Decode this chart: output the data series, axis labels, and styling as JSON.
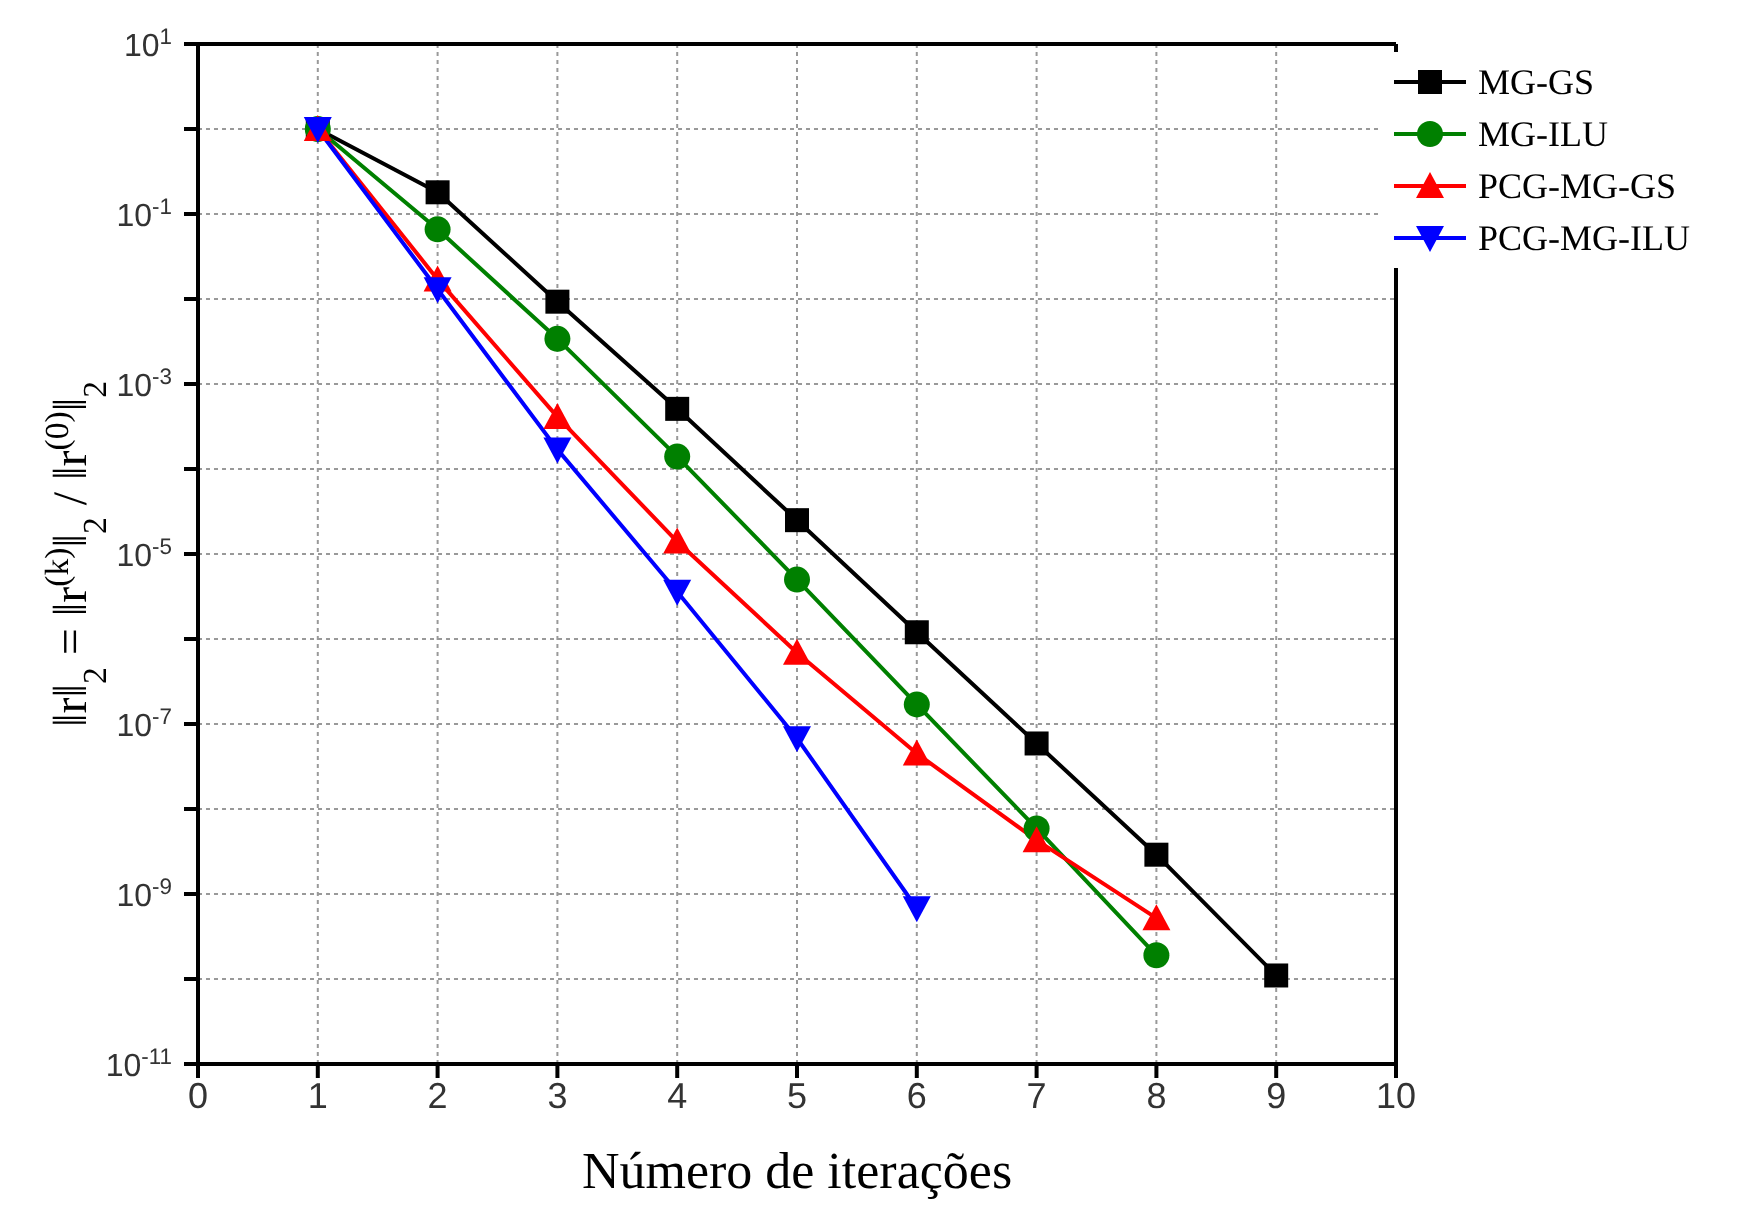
{
  "chart_data": {
    "type": "line",
    "xlabel": "Número de iterações",
    "ylabel": "‖r‖$_{2}$ = ‖r$^{(k)}$‖$_{2}$ / ‖r$^{(0)}$‖$_{2}$",
    "log": "y",
    "grid": true,
    "legend": "top right",
    "line_style": "solid",
    "xlim": [
      0,
      10
    ],
    "xticks": [
      0,
      1,
      2,
      3,
      4,
      5,
      6,
      7,
      8,
      9,
      10
    ],
    "ylim": [
      1e-11,
      10
    ],
    "yticks": [
      {
        "value": 10,
        "label": "10$^{1}$"
      },
      {
        "value": 1,
        "label": null
      },
      {
        "value": 0.1,
        "label": "10$^{-1}$"
      },
      {
        "value": 0.01,
        "label": null
      },
      {
        "value": 0.001,
        "label": "10$^{-3}$"
      },
      {
        "value": 0.0001,
        "label": null
      },
      {
        "value": 1e-05,
        "label": "10$^{-5}$"
      },
      {
        "value": 1e-06,
        "label": null
      },
      {
        "value": 1e-07,
        "label": "10$^{-7}$"
      },
      {
        "value": 1e-08,
        "label": null
      },
      {
        "value": 1e-09,
        "label": "10$^{-9}$"
      },
      {
        "value": 1e-10,
        "label": null
      },
      {
        "value": 1e-11,
        "label": "10$^{-11}$"
      }
    ],
    "series": [
      {
        "name": "MG-GS",
        "color": "#000000",
        "marker": "square",
        "x": [
          1,
          2,
          3,
          4,
          5,
          6,
          7,
          8,
          9
        ],
        "values": [
          1,
          0.18,
          0.0093,
          0.00051,
          2.5e-05,
          1.2e-06,
          5.9e-08,
          2.9e-09,
          1.1e-10
        ]
      },
      {
        "name": "MG-ILU",
        "color": "#008000",
        "marker": "circle",
        "x": [
          1,
          2,
          3,
          4,
          5,
          6,
          7,
          8
        ],
        "values": [
          1,
          0.066,
          0.0034,
          0.00014,
          5e-06,
          1.7e-07,
          5.9e-09,
          1.9e-10
        ]
      },
      {
        "name": "PCG-MG-GS",
        "color": "#ff0000",
        "marker": "triangle",
        "x": [
          1,
          2,
          3,
          4,
          5,
          6,
          7,
          8
        ],
        "values": [
          1,
          0.017,
          0.00041,
          1.4e-05,
          6.9e-07,
          4.5e-08,
          4.3e-09,
          5.2e-10
        ]
      },
      {
        "name": "PCG-MG-ILU",
        "color": "#0000ff",
        "marker": "triangle-down",
        "x": [
          1,
          2,
          3,
          4,
          5,
          6
        ],
        "values": [
          1,
          0.013,
          0.00017,
          3.6e-06,
          6.8e-08,
          6.8e-10
        ]
      }
    ]
  }
}
